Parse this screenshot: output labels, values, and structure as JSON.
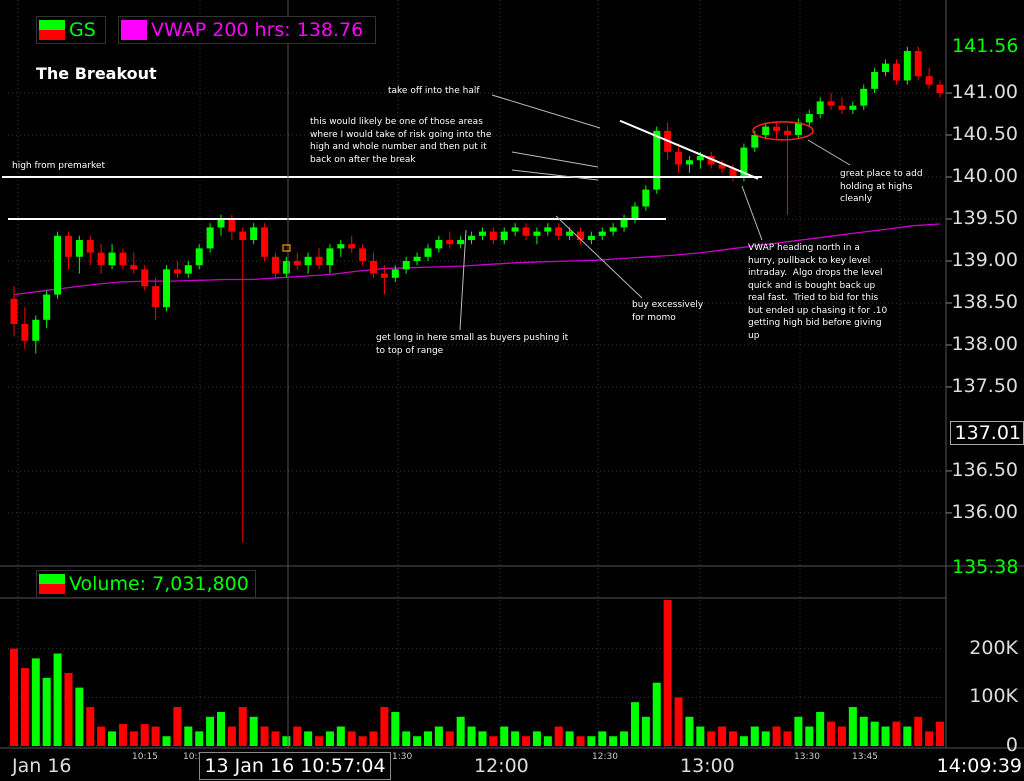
{
  "title": "The Breakout",
  "legend": {
    "symbol": "GS",
    "vwap": "VWAP 200 hrs: 138.76",
    "volume": "Volume: 7,031,800"
  },
  "price_axis": {
    "top": "141.56",
    "bottom": "135.38",
    "current": "137.01",
    "ticks": [
      "141.00",
      "140.50",
      "140.00",
      "139.50",
      "139.00",
      "138.50",
      "138.00",
      "137.50",
      "136.50",
      "136.00"
    ]
  },
  "volume_axis": {
    "ticks": [
      "200K",
      "100K",
      "0"
    ]
  },
  "time_axis": {
    "day": "Jan 16",
    "major": [
      "12:00",
      "13:00"
    ],
    "minor": [
      "10:15",
      "10:3",
      "1:30",
      "12:30",
      "13:30",
      "13:45"
    ],
    "cursor": "13 Jan 16 10:57:04",
    "last": "14:09:39"
  },
  "annotations": {
    "premarket": "high from premarket",
    "risk": "this would likely be one of those areas\nwhere I would take of risk going into the\nhigh and whole number and then put it\nback on after the break",
    "half": "take off into the half",
    "get_long": "get long in here small as buyers pushing it\nto top of range",
    "momo": "buy excessively\nfor momo",
    "vwap_note": "VWAP heading north in a\nhurry, pullback to key level\nintraday.  Algo drops the level\nquick and is bought back up\nreal fast.  Tried to bid for this\nbut ended up chasing it for .10\ngetting high bid before giving\nup",
    "add": "great place to add\nholding at highs\ncleanly"
  },
  "colors": {
    "up": "#00ff00",
    "down": "#ff0000",
    "vwap": "#cc00cc",
    "background": "#000000",
    "grid": "#3a3a3a"
  },
  "chart_data": [
    {
      "type": "line",
      "title": "GS",
      "ylim": [
        135.38,
        141.56
      ],
      "grid": true,
      "series": [
        {
          "name": "GS",
          "ohlc": [
            [
              138.55,
              138.7,
              138.1,
              138.25
            ],
            [
              138.25,
              138.45,
              137.95,
              138.05
            ],
            [
              138.05,
              138.35,
              137.9,
              138.3
            ],
            [
              138.3,
              138.65,
              138.2,
              138.6
            ],
            [
              138.6,
              139.35,
              138.55,
              139.3
            ],
            [
              139.3,
              139.35,
              138.9,
              139.05
            ],
            [
              139.05,
              139.3,
              138.85,
              139.25
            ],
            [
              139.25,
              139.3,
              138.95,
              139.1
            ],
            [
              139.1,
              139.2,
              138.85,
              138.95
            ],
            [
              138.95,
              139.2,
              138.9,
              139.1
            ],
            [
              139.1,
              139.15,
              138.9,
              138.95
            ],
            [
              138.95,
              139.1,
              138.85,
              138.9
            ],
            [
              138.9,
              138.95,
              138.65,
              138.7
            ],
            [
              138.7,
              138.8,
              138.3,
              138.45
            ],
            [
              138.45,
              138.95,
              138.4,
              138.9
            ],
            [
              138.9,
              139.0,
              138.8,
              138.85
            ],
            [
              138.85,
              139.0,
              138.8,
              138.95
            ],
            [
              138.95,
              139.2,
              138.9,
              139.15
            ],
            [
              139.15,
              139.45,
              139.1,
              139.4
            ],
            [
              139.4,
              139.55,
              139.3,
              139.5
            ],
            [
              139.5,
              139.55,
              139.25,
              139.35
            ],
            [
              139.35,
              139.4,
              135.65,
              139.25
            ],
            [
              139.25,
              139.45,
              139.2,
              139.4
            ],
            [
              139.4,
              139.45,
              139.0,
              139.05
            ],
            [
              139.05,
              139.1,
              138.8,
              138.85
            ],
            [
              138.85,
              139.05,
              138.8,
              139.0
            ],
            [
              139.0,
              139.1,
              138.9,
              138.95
            ],
            [
              138.95,
              139.1,
              138.85,
              139.05
            ],
            [
              139.05,
              139.15,
              138.9,
              138.95
            ],
            [
              138.95,
              139.2,
              138.85,
              139.15
            ],
            [
              139.15,
              139.25,
              139.05,
              139.2
            ],
            [
              139.2,
              139.3,
              139.1,
              139.15
            ],
            [
              139.15,
              139.2,
              138.95,
              139.0
            ],
            [
              139.0,
              139.1,
              138.8,
              138.85
            ],
            [
              138.85,
              138.95,
              138.6,
              138.8
            ],
            [
              138.8,
              138.95,
              138.75,
              138.9
            ],
            [
              138.9,
              139.05,
              138.85,
              139.0
            ],
            [
              139.0,
              139.1,
              138.95,
              139.05
            ],
            [
              139.05,
              139.2,
              139.0,
              139.15
            ],
            [
              139.15,
              139.3,
              139.1,
              139.25
            ],
            [
              139.25,
              139.35,
              139.15,
              139.2
            ],
            [
              139.2,
              139.3,
              139.15,
              139.25
            ],
            [
              139.25,
              139.35,
              139.2,
              139.3
            ],
            [
              139.3,
              139.4,
              139.25,
              139.35
            ],
            [
              139.35,
              139.4,
              139.2,
              139.25
            ],
            [
              139.25,
              139.4,
              139.2,
              139.35
            ],
            [
              139.35,
              139.45,
              139.3,
              139.4
            ],
            [
              139.4,
              139.45,
              139.25,
              139.3
            ],
            [
              139.3,
              139.4,
              139.2,
              139.35
            ],
            [
              139.35,
              139.45,
              139.3,
              139.4
            ],
            [
              139.4,
              139.45,
              139.25,
              139.3
            ],
            [
              139.3,
              139.4,
              139.25,
              139.35
            ],
            [
              139.35,
              139.4,
              139.2,
              139.25
            ],
            [
              139.25,
              139.35,
              139.2,
              139.3
            ],
            [
              139.3,
              139.4,
              139.25,
              139.35
            ],
            [
              139.35,
              139.45,
              139.3,
              139.4
            ],
            [
              139.4,
              139.55,
              139.35,
              139.5
            ],
            [
              139.5,
              139.7,
              139.45,
              139.65
            ],
            [
              139.65,
              139.9,
              139.6,
              139.85
            ],
            [
              139.85,
              140.6,
              139.8,
              140.55
            ],
            [
              140.55,
              140.65,
              140.2,
              140.3
            ],
            [
              140.3,
              140.4,
              140.05,
              140.15
            ],
            [
              140.15,
              140.25,
              140.05,
              140.2
            ],
            [
              140.2,
              140.3,
              140.1,
              140.25
            ],
            [
              140.25,
              140.3,
              140.1,
              140.15
            ],
            [
              140.15,
              140.2,
              140.05,
              140.1
            ],
            [
              140.1,
              140.15,
              139.95,
              140.0
            ],
            [
              140.0,
              140.4,
              139.95,
              140.35
            ],
            [
              140.35,
              140.55,
              140.3,
              140.5
            ],
            [
              140.5,
              140.65,
              140.45,
              140.6
            ],
            [
              140.6,
              140.65,
              140.45,
              140.55
            ],
            [
              140.55,
              140.6,
              139.55,
              140.5
            ],
            [
              140.5,
              140.7,
              140.45,
              140.65
            ],
            [
              140.65,
              140.8,
              140.6,
              140.75
            ],
            [
              140.75,
              140.95,
              140.7,
              140.9
            ],
            [
              140.9,
              141.0,
              140.8,
              140.85
            ],
            [
              140.85,
              140.95,
              140.75,
              140.8
            ],
            [
              140.8,
              140.9,
              140.75,
              140.85
            ],
            [
              140.85,
              141.1,
              140.8,
              141.05
            ],
            [
              141.05,
              141.3,
              141.0,
              141.25
            ],
            [
              141.25,
              141.4,
              141.2,
              141.35
            ],
            [
              141.35,
              141.4,
              141.1,
              141.15
            ],
            [
              141.15,
              141.55,
              141.1,
              141.5
            ],
            [
              141.5,
              141.55,
              141.15,
              141.2
            ],
            [
              141.2,
              141.3,
              141.05,
              141.1
            ],
            [
              141.1,
              141.15,
              140.95,
              141.0
            ]
          ]
        },
        {
          "name": "VWAP 200 hrs",
          "values": [
            138.6,
            138.64,
            138.68,
            138.72,
            138.75,
            138.76,
            138.76,
            138.77,
            138.78,
            138.78,
            138.8,
            138.82,
            138.84,
            138.88,
            138.91,
            138.92,
            138.93,
            138.94,
            138.96,
            138.98,
            138.99,
            139.0,
            139.01,
            139.03,
            139.05,
            139.07,
            139.1,
            139.14,
            139.18,
            139.22,
            139.26,
            139.3,
            139.34,
            139.38,
            139.42,
            139.44
          ]
        }
      ]
    },
    {
      "type": "bar",
      "title": "Volume",
      "ylim": [
        0,
        300000
      ],
      "series": [
        {
          "name": "Volume",
          "values": [
            200000,
            160000,
            180000,
            140000,
            190000,
            150000,
            120000,
            80000,
            40000,
            30000,
            45000,
            30000,
            45000,
            40000,
            20000,
            80000,
            40000,
            30000,
            60000,
            70000,
            40000,
            80000,
            60000,
            40000,
            30000,
            20000,
            40000,
            30000,
            20000,
            30000,
            40000,
            30000,
            20000,
            30000,
            80000,
            70000,
            30000,
            20000,
            30000,
            40000,
            30000,
            60000,
            40000,
            30000,
            20000,
            40000,
            30000,
            20000,
            30000,
            20000,
            40000,
            30000,
            20000,
            20000,
            30000,
            20000,
            30000,
            90000,
            60000,
            130000,
            300000,
            100000,
            60000,
            40000,
            30000,
            40000,
            30000,
            20000,
            40000,
            30000,
            40000,
            30000,
            60000,
            40000,
            70000,
            50000,
            40000,
            80000,
            60000,
            50000,
            40000,
            50000,
            40000,
            60000,
            30000,
            50000
          ]
        }
      ]
    }
  ]
}
